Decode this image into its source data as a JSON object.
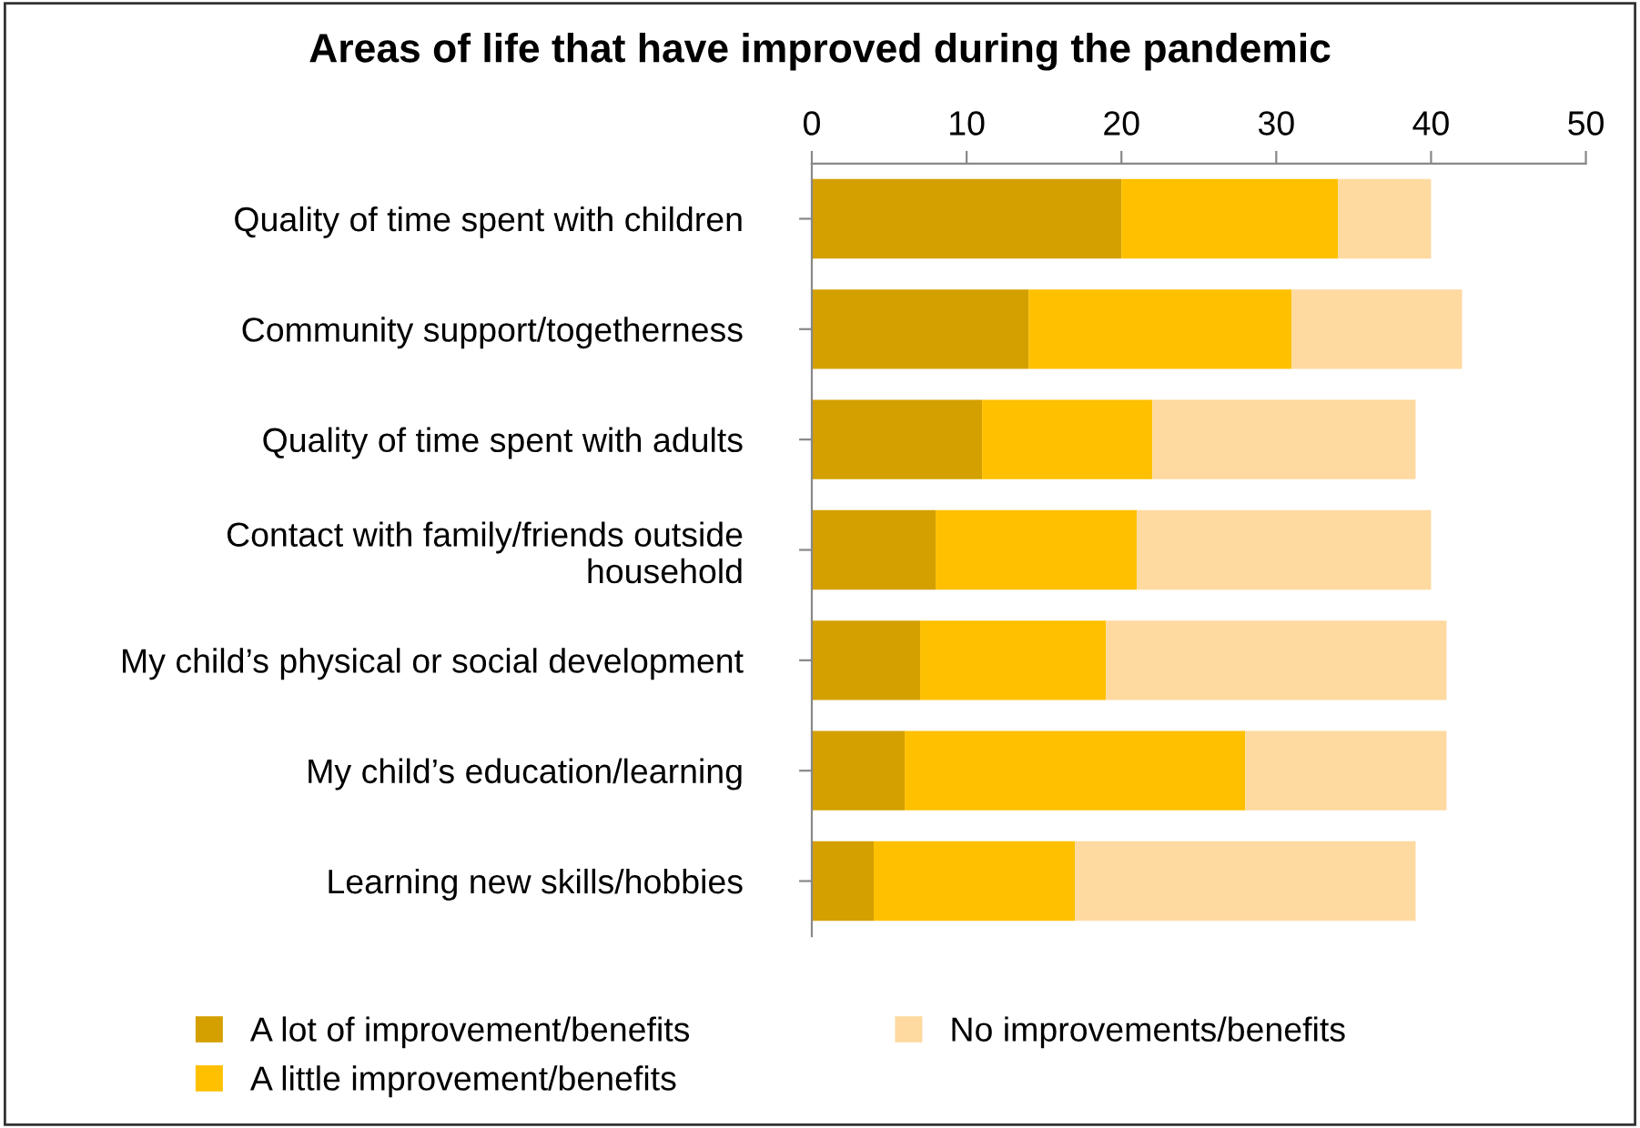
{
  "chart_data": {
    "type": "bar",
    "orientation": "horizontal",
    "stacked": true,
    "title": "Areas of life that have improved during the pandemic",
    "categories": [
      "Quality of time spent with children",
      "Community support/togetherness",
      "Quality of time spent with adults",
      "Contact with family/friends outside\nhousehold",
      "My child’s physical or social development",
      "My child’s education/learning",
      "Learning new skills/hobbies"
    ],
    "series": [
      {
        "name": "A lot of improvement/benefits",
        "color": "#d4a000",
        "values": [
          20,
          14,
          11,
          8,
          7,
          6,
          4
        ]
      },
      {
        "name": "A little improvement/benefits",
        "color": "#ffc000",
        "values": [
          14,
          17,
          11,
          13,
          12,
          22,
          13
        ]
      },
      {
        "name": "No improvements/benefits",
        "color": "#fed9a0",
        "values": [
          6,
          11,
          17,
          19,
          22,
          13,
          22
        ]
      }
    ],
    "xlim": [
      0,
      50
    ],
    "xticks": [
      0,
      10,
      20,
      30,
      40,
      50
    ],
    "grid": false,
    "legend": "bottom"
  }
}
